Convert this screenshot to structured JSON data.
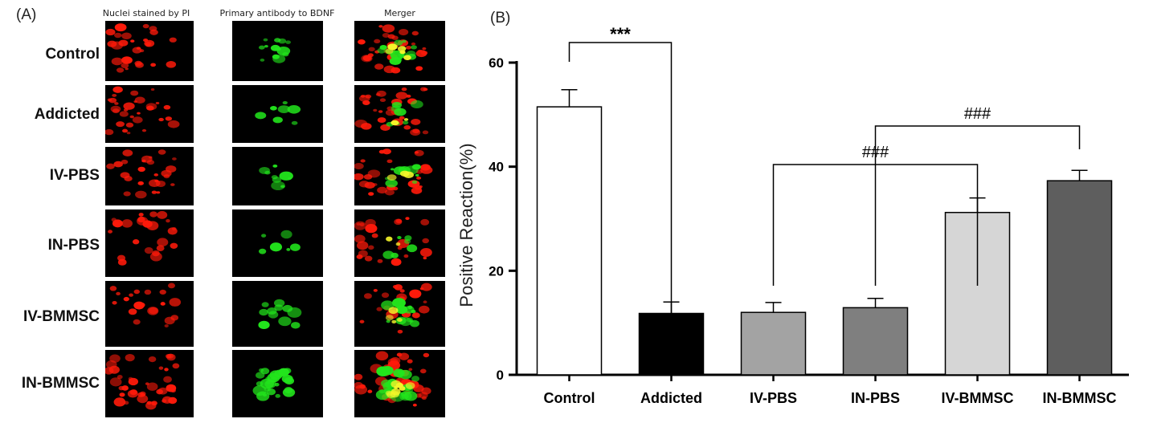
{
  "panel_a": {
    "label": "(A)",
    "columns": [
      "Nuclei stained by PI",
      "Primary antibody to BDNF",
      "Merger"
    ],
    "rows": [
      "Control",
      "Addicted",
      "IV-PBS",
      "IN-PBS",
      "IV-BMMSC",
      "IN-BMMSC"
    ],
    "colors": {
      "pi": "#ff1a0a",
      "bdnf": "#22e61c",
      "merge": "#f5f52a",
      "background": "#000000"
    }
  },
  "chart_data": {
    "type": "bar",
    "panel_label": "(B)",
    "categories": [
      "Control",
      "Addicted",
      "IV-PBS",
      "IN-PBS",
      "IV-BMMSC",
      "IN-BMMSC"
    ],
    "values": [
      51.5,
      11.8,
      12.0,
      12.9,
      31.2,
      37.3
    ],
    "errors": [
      3.3,
      2.2,
      1.9,
      1.8,
      2.8,
      2.0
    ],
    "bar_colors": [
      "#ffffff",
      "#000000",
      "#a3a3a3",
      "#7f7f7f",
      "#d6d6d6",
      "#5e5e5e"
    ],
    "xlabel": "",
    "ylabel": "Positive Reaction(%)",
    "ylim": [
      0,
      60
    ],
    "yticks": [
      0,
      20,
      40,
      60
    ],
    "grid": false,
    "annotations": [
      {
        "text": "***",
        "from": 0,
        "to": 1
      },
      {
        "text": "###",
        "from": 2,
        "to": 4
      },
      {
        "text": "###",
        "from": 3,
        "to": 5
      }
    ]
  }
}
